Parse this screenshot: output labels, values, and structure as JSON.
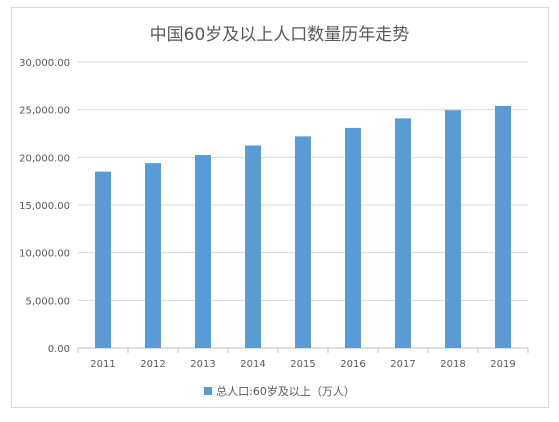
{
  "chart_data": {
    "type": "bar",
    "title": "中国60岁及以上人口数量历年走势",
    "categories": [
      "2011",
      "2012",
      "2013",
      "2014",
      "2015",
      "2016",
      "2017",
      "2018",
      "2019"
    ],
    "series": [
      {
        "name": "总人口:60岁及以上（万人）",
        "values": [
          18499,
          19390,
          20243,
          21242,
          22200,
          23086,
          24090,
          24949,
          25388
        ]
      }
    ],
    "yticks": [
      "0.00",
      "5,000.00",
      "10,000.00",
      "15,000.00",
      "20,000.00",
      "25,000.00",
      "30,000.00"
    ],
    "ylim": [
      0,
      30000
    ],
    "grid": true,
    "legend_position": "bottom",
    "bar_color": "#5b9bd5"
  }
}
